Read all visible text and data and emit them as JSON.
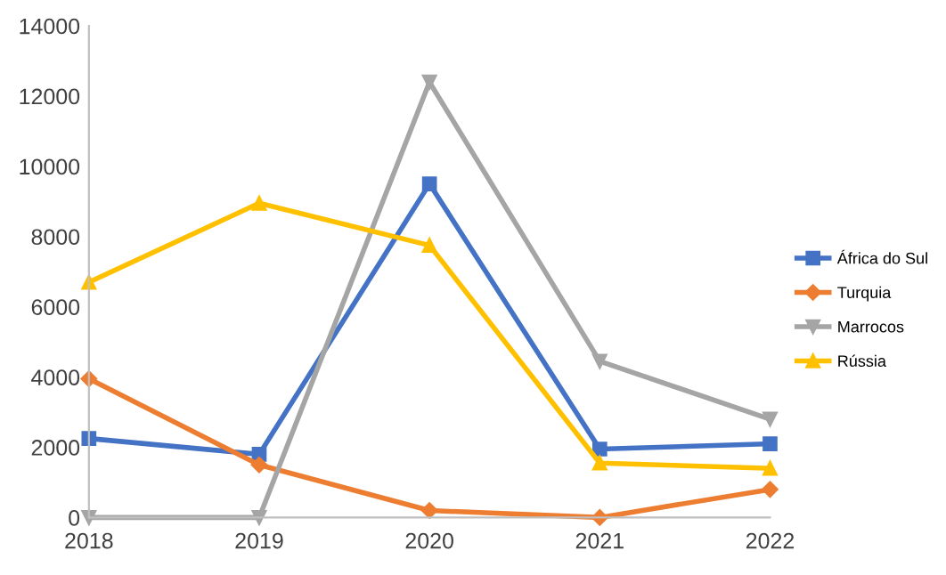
{
  "chart_data": {
    "type": "line",
    "x": [
      2018,
      2019,
      2020,
      2021,
      2022
    ],
    "series": [
      {
        "name": "África do Sul",
        "color": "#4472c4",
        "marker": "square",
        "values": [
          2250,
          1800,
          9500,
          1950,
          2100
        ]
      },
      {
        "name": "Turquia",
        "color": "#ed7d31",
        "marker": "diamond",
        "values": [
          3950,
          1500,
          200,
          0,
          800
        ]
      },
      {
        "name": "Marrocos",
        "color": "#a5a5a5",
        "marker": "triangle_down",
        "values": [
          0,
          0,
          12400,
          4450,
          2800
        ]
      },
      {
        "name": "Rússia",
        "color": "#ffc000",
        "marker": "triangle",
        "values": [
          6700,
          8950,
          7750,
          1550,
          1400
        ]
      }
    ],
    "xlim": [
      2018,
      2022
    ],
    "xticks": [
      2018,
      2019,
      2020,
      2021,
      2022
    ],
    "ylim": [
      0,
      14000
    ],
    "yticks": [
      0,
      2000,
      4000,
      6000,
      8000,
      10000,
      12000,
      14000
    ],
    "grid": false,
    "legend": "right",
    "line_style": "solid"
  }
}
